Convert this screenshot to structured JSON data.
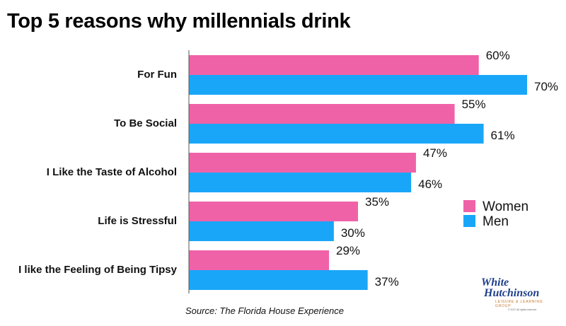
{
  "chart_data": {
    "type": "bar",
    "orientation": "horizontal",
    "title": "Top 5 reasons why millennials drink",
    "categories": [
      "For Fun",
      "To Be Social",
      "I Like the Taste of Alcohol",
      "Life is Stressful",
      "I like the Feeling of Being Tipsy"
    ],
    "series": [
      {
        "name": "Women",
        "color": "#f062a8",
        "values": [
          60,
          55,
          47,
          35,
          29
        ],
        "labels": [
          "60%",
          "55%",
          "47%",
          "35%",
          "29%"
        ]
      },
      {
        "name": "Men",
        "color": "#1aa6f8",
        "values": [
          70,
          61,
          46,
          30,
          37
        ],
        "labels": [
          "70%",
          "61%",
          "46%",
          "30%",
          "37%"
        ]
      }
    ],
    "xlim": [
      0,
      100
    ],
    "grid": false,
    "legend_position": "right",
    "source": "Source: The Florida House Experience"
  },
  "logo": {
    "line1": "White",
    "line2": "Hutchinson",
    "tagline": "LEISURE & LEARNING GROUP",
    "copyright": "© 2017 All rights reserved"
  }
}
